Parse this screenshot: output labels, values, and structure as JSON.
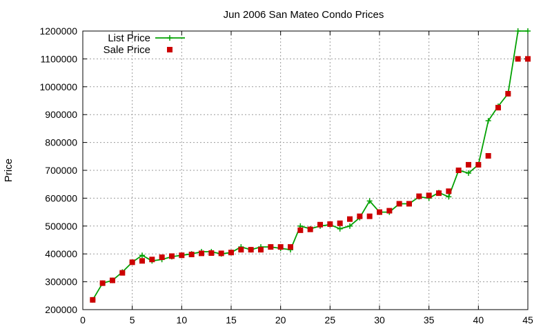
{
  "chart_data": {
    "type": "line",
    "title": "Jun 2006 San Mateo Condo Prices",
    "xlabel": "",
    "ylabel": "Price",
    "xlim": [
      0,
      45
    ],
    "ylim": [
      200000,
      1200000
    ],
    "x_ticks": [
      0,
      5,
      10,
      15,
      20,
      25,
      30,
      35,
      40,
      45
    ],
    "y_ticks": [
      200000,
      300000,
      400000,
      500000,
      600000,
      700000,
      800000,
      900000,
      1000000,
      1100000,
      1200000
    ],
    "grid": true,
    "legend_position": "top-left",
    "x": [
      1,
      2,
      3,
      4,
      5,
      6,
      7,
      8,
      9,
      10,
      11,
      12,
      13,
      14,
      15,
      16,
      17,
      18,
      19,
      20,
      21,
      22,
      23,
      24,
      25,
      26,
      27,
      28,
      29,
      30,
      31,
      32,
      33,
      34,
      35,
      36,
      37,
      38,
      39,
      40,
      41,
      42,
      43,
      44,
      45
    ],
    "series": [
      {
        "name": "List Price",
        "style": "line-plus",
        "color": "#00a000",
        "values": [
          235000,
          295000,
          305000,
          335000,
          370000,
          395000,
          375000,
          380000,
          390000,
          395000,
          400000,
          408000,
          408000,
          400000,
          405000,
          425000,
          415000,
          425000,
          425000,
          420000,
          415000,
          500000,
          490000,
          500000,
          505000,
          490000,
          500000,
          530000,
          590000,
          550000,
          550000,
          580000,
          580000,
          605000,
          600000,
          620000,
          605000,
          700000,
          690000,
          720000,
          878000,
          930000,
          975000,
          1200000,
          1200000
        ]
      },
      {
        "name": "Sale Price",
        "style": "points-square",
        "color": "#cc0000",
        "values": [
          235000,
          295000,
          305000,
          332000,
          370000,
          375000,
          380000,
          388000,
          392000,
          395000,
          398000,
          402000,
          403000,
          402000,
          405000,
          415000,
          415000,
          415000,
          425000,
          425000,
          425000,
          485000,
          488000,
          505000,
          507000,
          510000,
          525000,
          535000,
          535000,
          550000,
          555000,
          580000,
          580000,
          607000,
          610000,
          618000,
          625000,
          700000,
          720000,
          720000,
          752000,
          925000,
          975000,
          1100000,
          1100000
        ]
      }
    ]
  }
}
